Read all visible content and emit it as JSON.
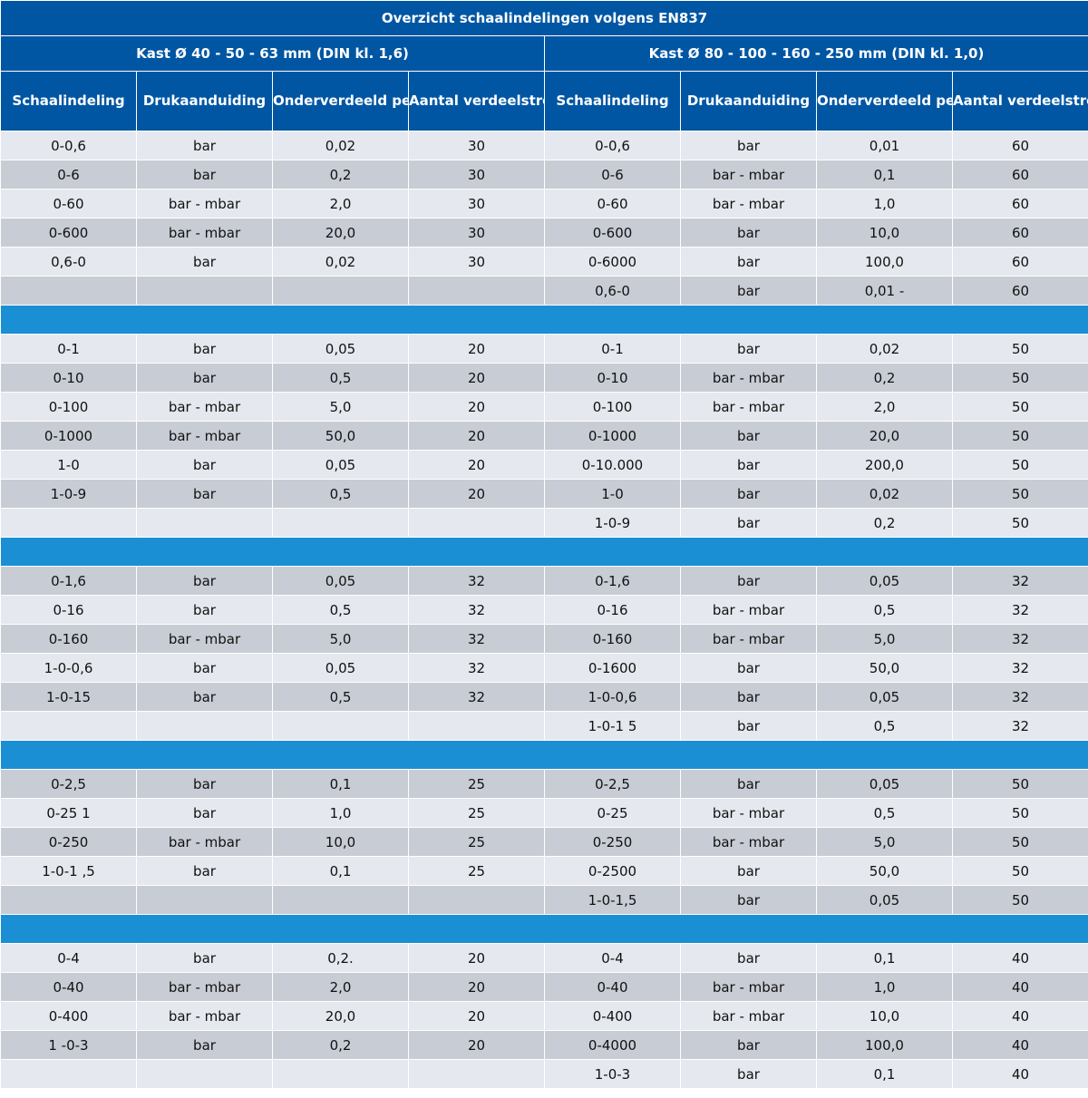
{
  "title": "Overzicht schaalindelingen volgens EN837",
  "groups": [
    "Kast Ø 40 - 50 - 63 mm (DIN kl. 1,6)",
    "Kast Ø 80 - 100 - 160 - 250 mm (DIN kl. 1,0)"
  ],
  "columns": [
    "Schaalindeling",
    "Drukaanduiding",
    "Onderverdeeld per",
    "Aantal verdeelstrepen"
  ],
  "colors": {
    "header": "#0056a3",
    "separator": "#1a8fd3",
    "row_light": "#e5e8ee",
    "row_dark": "#c8ccd5"
  },
  "sections": [
    {
      "rows": [
        [
          "0-0,6",
          "bar",
          "0,02",
          "30",
          "0-0,6",
          "bar",
          "0,01",
          "60"
        ],
        [
          "0-6",
          "bar",
          "0,2",
          "30",
          "0-6",
          "bar - mbar",
          "0,1",
          "60"
        ],
        [
          "0-60",
          "bar - mbar",
          "2,0",
          "30",
          "0-60",
          "bar - mbar",
          "1,0",
          "60"
        ],
        [
          "0-600",
          "bar - mbar",
          "20,0",
          "30",
          "0-600",
          "bar",
          "10,0",
          "60"
        ],
        [
          "0,6-0",
          "bar",
          "0,02",
          "30",
          "0-6000",
          "bar",
          "100,0",
          "60"
        ],
        [
          "",
          "",
          "",
          "",
          "0,6-0",
          "bar",
          "0,01 -",
          "60"
        ]
      ]
    },
    {
      "rows": [
        [
          "0-1",
          "bar",
          "0,05",
          "20",
          "0-1",
          "bar",
          "0,02",
          "50"
        ],
        [
          "0-10",
          "bar",
          "0,5",
          "20",
          "0-10",
          "bar - mbar",
          "0,2",
          "50"
        ],
        [
          "0-100",
          "bar - mbar",
          "5,0",
          "20",
          "0-100",
          "bar - mbar",
          "2,0",
          "50"
        ],
        [
          "0-1000",
          "bar - mbar",
          "50,0",
          "20",
          "0-1000",
          "bar",
          "20,0",
          "50"
        ],
        [
          "1-0",
          "bar",
          "0,05",
          "20",
          "0-10.000",
          "bar",
          "200,0",
          "50"
        ],
        [
          "1-0-9",
          "bar",
          "0,5",
          "20",
          "1-0",
          "bar",
          "0,02",
          "50"
        ],
        [
          "",
          "",
          "",
          "",
          "1-0-9",
          "bar",
          "0,2",
          "50"
        ]
      ]
    },
    {
      "rows": [
        [
          "0-1,6",
          "bar",
          "0,05",
          "32",
          "0-1,6",
          "bar",
          "0,05",
          "32"
        ],
        [
          "0-16",
          "bar",
          "0,5",
          "32",
          "0-16",
          "bar - mbar",
          "0,5",
          "32"
        ],
        [
          "0-160",
          "bar - mbar",
          "5,0",
          "32",
          "0-160",
          "bar - mbar",
          "5,0",
          "32"
        ],
        [
          "1-0-0,6",
          "bar",
          "0,05",
          "32",
          "0-1600",
          "bar",
          "50,0",
          "32"
        ],
        [
          "1-0-15",
          "bar",
          "0,5",
          "32",
          "1-0-0,6",
          "bar",
          "0,05",
          "32"
        ],
        [
          "",
          "",
          "",
          "",
          "1-0-1 5",
          "bar",
          "0,5",
          "32"
        ]
      ]
    },
    {
      "rows": [
        [
          "0-2,5",
          "bar",
          "0,1",
          "25",
          "0-2,5",
          "bar",
          "0,05",
          "50"
        ],
        [
          "0-25 1",
          "bar",
          "1,0",
          "25",
          "0-25",
          "bar - mbar",
          "0,5",
          "50"
        ],
        [
          "0-250",
          "bar - mbar",
          "10,0",
          "25",
          "0-250",
          "bar - mbar",
          "5,0",
          "50"
        ],
        [
          "1-0-1 ,5",
          "bar",
          "0,1",
          "25",
          "0-2500",
          "bar",
          "50,0",
          "50"
        ],
        [
          "",
          "",
          "",
          "",
          "1-0-1,5",
          "bar",
          "0,05",
          "50"
        ]
      ]
    },
    {
      "rows": [
        [
          "0-4",
          "bar",
          "0,2.",
          "20",
          "0-4",
          "bar",
          "0,1",
          "40"
        ],
        [
          "0-40",
          "bar - mbar",
          "2,0",
          "20",
          "0-40",
          "bar - mbar",
          "1,0",
          "40"
        ],
        [
          "0-400",
          "bar - mbar",
          "20,0",
          "20",
          "0-400",
          "bar - mbar",
          "10,0",
          "40"
        ],
        [
          "1 -0-3",
          "bar",
          "0,2",
          "20",
          "0-4000",
          "bar",
          "100,0",
          "40"
        ],
        [
          "",
          "",
          "",
          "",
          "1-0-3",
          "bar",
          "0,1",
          "40"
        ]
      ]
    }
  ]
}
